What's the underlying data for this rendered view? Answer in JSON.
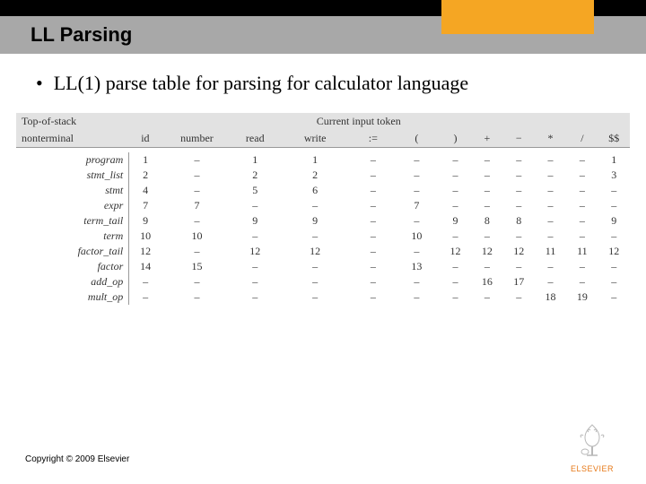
{
  "slide": {
    "title": "LL Parsing",
    "bullet": "LL(1) parse table for parsing for calculator language",
    "copyright": "Copyright © 2009 Elsevier",
    "logo_name": "ELSEVIER"
  },
  "table": {
    "type": "table",
    "header_left_line1": "Top-of-stack",
    "header_left_line2": "nonterminal",
    "super_header": "Current input token",
    "columns": [
      "id",
      "number",
      "read",
      "write",
      ":=",
      "(",
      ")",
      "+",
      "−",
      "*",
      "/",
      "$$"
    ],
    "rows": [
      {
        "label": "program",
        "cells": [
          "1",
          "–",
          "1",
          "1",
          "–",
          "–",
          "–",
          "–",
          "–",
          "–",
          "–",
          "1"
        ]
      },
      {
        "label": "stmt_list",
        "cells": [
          "2",
          "–",
          "2",
          "2",
          "–",
          "–",
          "–",
          "–",
          "–",
          "–",
          "–",
          "3"
        ]
      },
      {
        "label": "stmt",
        "cells": [
          "4",
          "–",
          "5",
          "6",
          "–",
          "–",
          "–",
          "–",
          "–",
          "–",
          "–",
          "–"
        ]
      },
      {
        "label": "expr",
        "cells": [
          "7",
          "7",
          "–",
          "–",
          "–",
          "7",
          "–",
          "–",
          "–",
          "–",
          "–",
          "–"
        ]
      },
      {
        "label": "term_tail",
        "cells": [
          "9",
          "–",
          "9",
          "9",
          "–",
          "–",
          "9",
          "8",
          "8",
          "–",
          "–",
          "9"
        ]
      },
      {
        "label": "term",
        "cells": [
          "10",
          "10",
          "–",
          "–",
          "–",
          "10",
          "–",
          "–",
          "–",
          "–",
          "–",
          "–"
        ]
      },
      {
        "label": "factor_tail",
        "cells": [
          "12",
          "–",
          "12",
          "12",
          "–",
          "–",
          "12",
          "12",
          "12",
          "11",
          "11",
          "12"
        ]
      },
      {
        "label": "factor",
        "cells": [
          "14",
          "15",
          "–",
          "–",
          "–",
          "13",
          "–",
          "–",
          "–",
          "–",
          "–",
          "–"
        ]
      },
      {
        "label": "add_op",
        "cells": [
          "–",
          "–",
          "–",
          "–",
          "–",
          "–",
          "–",
          "16",
          "17",
          "–",
          "–",
          "–"
        ]
      },
      {
        "label": "mult_op",
        "cells": [
          "–",
          "–",
          "–",
          "–",
          "–",
          "–",
          "–",
          "–",
          "–",
          "18",
          "19",
          "–"
        ]
      }
    ],
    "styling": {
      "header_bg": "#e2e2e2",
      "border_color": "#999999",
      "text_color": "#333333",
      "font_size": 12,
      "row_label_style": "italic",
      "dash_char": "–"
    }
  },
  "colors": {
    "top_bar": "#000000",
    "accent_orange": "#f5a623",
    "title_bar_bg": "#a8a8a8",
    "background": "#ffffff",
    "logo_orange": "#e67817"
  }
}
